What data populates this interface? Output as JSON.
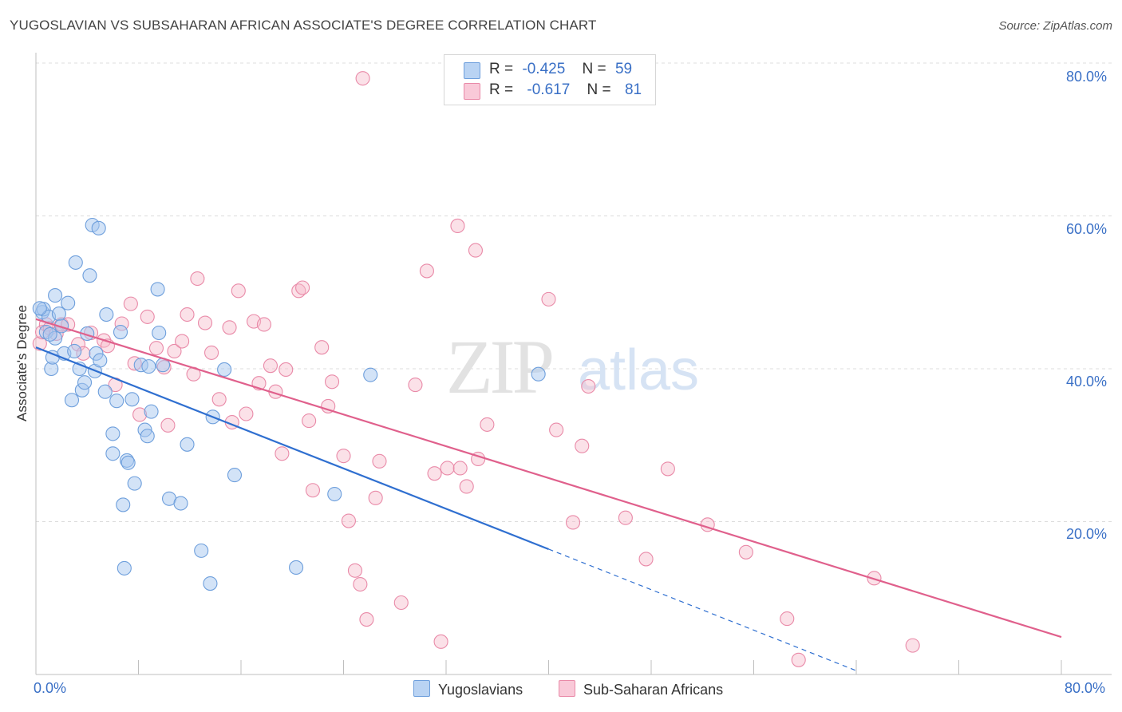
{
  "header": {
    "title": "YUGOSLAVIAN VS SUBSAHARAN AFRICAN ASSOCIATE'S DEGREE CORRELATION CHART",
    "source": "Source: ZipAtlas.com"
  },
  "legend": {
    "rows": [
      {
        "r_label": "R =",
        "r_value": "-0.425",
        "n_label": "N =",
        "n_value": "59"
      },
      {
        "r_label": "R =",
        "r_value": "-0.617",
        "n_label": "N =",
        "n_value": "81"
      }
    ]
  },
  "bottom_legend": {
    "series1": "Yugoslavians",
    "series2": "Sub-Saharan Africans"
  },
  "axes": {
    "x_min_label": "0.0%",
    "x_max_label": "80.0%",
    "y_ticks": [
      "80.0%",
      "60.0%",
      "40.0%",
      "20.0%"
    ]
  },
  "watermark": {
    "zip": "ZIP",
    "atlas": "atlas"
  },
  "colors": {
    "blue_fill": "#a8c8f0",
    "blue_stroke": "#6e9fdc",
    "blue_line": "#2f6fd0",
    "pink_fill": "#f6bccd",
    "pink_stroke": "#e98aa8",
    "pink_line": "#e0608c",
    "tick_text": "#3a70c6"
  },
  "chart_data": {
    "type": "scatter",
    "title": "YUGOSLAVIAN VS SUBSAHARAN AFRICAN ASSOCIATE'S DEGREE CORRELATION CHART",
    "xlabel": "",
    "ylabel": "Associate's Degree",
    "xlim": [
      0,
      80
    ],
    "ylim": [
      0,
      80
    ],
    "x_unit": "%",
    "y_unit": "%",
    "grid": "horizontal dashed",
    "legend_position": "top-center",
    "series": [
      {
        "name": "Yugoslavians",
        "color": "#a8c8f0",
        "R": -0.425,
        "N": 59,
        "trend": {
          "x0": 0,
          "y0": 42.8,
          "x1": 40,
          "y1": 16.4,
          "dashed_to_x": 64,
          "dashed_to_y": 0.5
        },
        "points": [
          [
            0.5,
            47.4
          ],
          [
            0.6,
            47.8
          ],
          [
            0.8,
            44.8
          ],
          [
            1.0,
            46.8
          ],
          [
            1.2,
            40.0
          ],
          [
            1.3,
            41.5
          ],
          [
            1.5,
            49.6
          ],
          [
            1.5,
            44.0
          ],
          [
            1.8,
            47.2
          ],
          [
            2.0,
            45.6
          ],
          [
            2.2,
            42.0
          ],
          [
            2.5,
            48.6
          ],
          [
            2.8,
            35.9
          ],
          [
            3.1,
            53.9
          ],
          [
            3.4,
            40.0
          ],
          [
            3.6,
            37.2
          ],
          [
            3.8,
            38.2
          ],
          [
            4.0,
            44.6
          ],
          [
            4.2,
            52.2
          ],
          [
            4.4,
            58.8
          ],
          [
            4.6,
            39.7
          ],
          [
            4.7,
            42.0
          ],
          [
            4.9,
            58.4
          ],
          [
            5.0,
            41.1
          ],
          [
            5.4,
            37.0
          ],
          [
            5.5,
            47.1
          ],
          [
            6.0,
            31.5
          ],
          [
            6.0,
            28.9
          ],
          [
            6.3,
            35.8
          ],
          [
            6.6,
            44.8
          ],
          [
            6.8,
            22.2
          ],
          [
            6.9,
            13.9
          ],
          [
            7.1,
            28.0
          ],
          [
            7.2,
            27.7
          ],
          [
            7.5,
            36.0
          ],
          [
            7.7,
            25.0
          ],
          [
            8.2,
            40.5
          ],
          [
            8.5,
            32.0
          ],
          [
            8.7,
            31.2
          ],
          [
            8.8,
            40.3
          ],
          [
            9.0,
            34.4
          ],
          [
            9.5,
            50.4
          ],
          [
            9.6,
            44.7
          ],
          [
            9.9,
            40.5
          ],
          [
            10.4,
            23.0
          ],
          [
            11.3,
            22.4
          ],
          [
            11.8,
            30.1
          ],
          [
            12.9,
            16.2
          ],
          [
            13.6,
            11.9
          ],
          [
            13.8,
            33.7
          ],
          [
            14.7,
            39.9
          ],
          [
            15.5,
            26.1
          ],
          [
            20.3,
            14.0
          ],
          [
            23.3,
            23.6
          ],
          [
            26.1,
            39.2
          ],
          [
            39.2,
            39.3
          ],
          [
            3.0,
            42.3
          ],
          [
            1.1,
            44.5
          ],
          [
            0.3,
            47.9
          ]
        ]
      },
      {
        "name": "Sub-Saharan Africans",
        "color": "#f6bccd",
        "R": -0.617,
        "N": 81,
        "trend": {
          "x0": 0,
          "y0": 46.5,
          "x1": 80,
          "y1": 4.9
        },
        "points": [
          [
            0.3,
            43.3
          ],
          [
            0.5,
            44.8
          ],
          [
            0.8,
            45.8
          ],
          [
            1.1,
            45.3
          ],
          [
            1.6,
            44.6
          ],
          [
            2.0,
            45.8
          ],
          [
            2.5,
            45.8
          ],
          [
            3.3,
            43.2
          ],
          [
            3.7,
            42.0
          ],
          [
            4.3,
            44.7
          ],
          [
            5.3,
            43.7
          ],
          [
            5.6,
            43.0
          ],
          [
            6.2,
            37.9
          ],
          [
            6.7,
            45.9
          ],
          [
            7.4,
            48.5
          ],
          [
            7.7,
            40.7
          ],
          [
            8.1,
            34.0
          ],
          [
            8.7,
            46.8
          ],
          [
            9.4,
            42.7
          ],
          [
            10.0,
            40.2
          ],
          [
            10.3,
            32.6
          ],
          [
            10.8,
            42.3
          ],
          [
            11.4,
            43.6
          ],
          [
            11.8,
            47.1
          ],
          [
            12.3,
            39.3
          ],
          [
            12.6,
            51.8
          ],
          [
            13.2,
            46.0
          ],
          [
            13.7,
            42.1
          ],
          [
            14.3,
            36.0
          ],
          [
            15.1,
            45.4
          ],
          [
            15.3,
            33.0
          ],
          [
            15.8,
            50.2
          ],
          [
            16.4,
            34.1
          ],
          [
            17.0,
            46.2
          ],
          [
            17.4,
            38.1
          ],
          [
            17.8,
            45.8
          ],
          [
            18.3,
            40.4
          ],
          [
            18.7,
            37.0
          ],
          [
            19.2,
            28.9
          ],
          [
            19.5,
            39.9
          ],
          [
            20.5,
            50.2
          ],
          [
            20.8,
            50.6
          ],
          [
            21.3,
            33.2
          ],
          [
            21.6,
            24.1
          ],
          [
            22.3,
            42.8
          ],
          [
            22.8,
            35.1
          ],
          [
            23.1,
            38.3
          ],
          [
            24.0,
            28.6
          ],
          [
            24.4,
            20.1
          ],
          [
            24.9,
            13.6
          ],
          [
            25.3,
            11.8
          ],
          [
            25.8,
            7.2
          ],
          [
            26.5,
            23.1
          ],
          [
            26.8,
            27.9
          ],
          [
            28.5,
            9.4
          ],
          [
            29.6,
            37.9
          ],
          [
            30.5,
            52.8
          ],
          [
            31.1,
            26.3
          ],
          [
            31.6,
            4.3
          ],
          [
            32.1,
            27.0
          ],
          [
            32.9,
            58.7
          ],
          [
            33.1,
            27.0
          ],
          [
            33.6,
            24.6
          ],
          [
            34.3,
            55.5
          ],
          [
            34.5,
            28.2
          ],
          [
            35.2,
            32.7
          ],
          [
            40.0,
            49.1
          ],
          [
            40.6,
            32.0
          ],
          [
            41.9,
            19.9
          ],
          [
            42.6,
            29.9
          ],
          [
            43.1,
            37.7
          ],
          [
            46.0,
            20.5
          ],
          [
            47.6,
            15.1
          ],
          [
            49.3,
            26.9
          ],
          [
            52.4,
            19.6
          ],
          [
            55.4,
            16.0
          ],
          [
            58.6,
            7.3
          ],
          [
            59.5,
            1.9
          ],
          [
            65.4,
            12.6
          ],
          [
            68.4,
            3.8
          ],
          [
            25.5,
            78.0
          ]
        ]
      }
    ]
  }
}
